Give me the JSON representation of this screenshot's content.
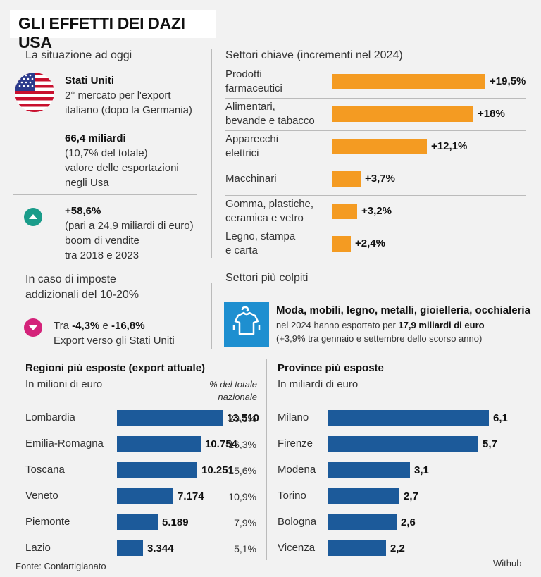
{
  "title": "GLI EFFETTI DEI DAZI USA",
  "situation": {
    "heading": "La situazione ad oggi",
    "country": "Stati Uniti",
    "country_desc": [
      "2° mercato per l'export",
      "italiano (dopo la Germania)"
    ],
    "export_value": "66,4 miliardi",
    "export_desc": [
      "(10,7% del totale)",
      "valore delle esportazioni",
      "negli Usa"
    ],
    "growth": "+58,6%",
    "growth_desc": [
      "(pari a 24,9 miliardi di euro)",
      "boom di vendite",
      "tra 2018 e 2023"
    ]
  },
  "tariffs": {
    "heading": [
      "In caso di imposte",
      "addizionali del 10-20%"
    ],
    "range_prefix": "Tra ",
    "range_low": "-4,3%",
    "range_mid": " e ",
    "range_high": "-16,8%",
    "range_desc": "Export verso gli Stati Uniti"
  },
  "key_sectors": {
    "heading": "Settori chiave (incrementi nel 2024)",
    "chart_data": {
      "type": "bar",
      "categories": [
        "Prodotti farmaceutici",
        "Alimentari, bevande e tabacco",
        "Apparecchi elettrici",
        "Macchinari",
        "Gomma, plastiche, ceramica e vetro",
        "Legno, stampa e carta"
      ],
      "values": [
        19.5,
        18,
        12.1,
        3.7,
        3.2,
        2.4
      ],
      "labels": [
        "+19,5%",
        "+18%",
        "+12,1%",
        "+3,7%",
        "+3,2%",
        "+2,4%"
      ],
      "label_lines": [
        [
          "Prodotti",
          "farmaceutici"
        ],
        [
          "Alimentari,",
          "bevande e tabacco"
        ],
        [
          "Apparecchi",
          "elettrici"
        ],
        [
          "Macchinari"
        ],
        [
          "Gomma, plastiche,",
          "ceramica e vetro"
        ],
        [
          "Legno, stampa",
          "e carta"
        ]
      ],
      "color": "#f49b22"
    }
  },
  "hit_sectors": {
    "heading": "Settori più colpiti",
    "headline": "Moda, mobili, legno, metalli, gioielleria, occhialeria",
    "line2_prefix": "nel 2024 hanno esportato per ",
    "line2_bold": "17,9 miliardi di euro",
    "line3": "(+3,9% tra gennaio e settembre dello scorso anno)",
    "icon": "clothing-icon"
  },
  "regions": {
    "heading": "Regioni più esposte (export attuale)",
    "subheading": "In milioni di euro",
    "pct_header": [
      "% del totale",
      "nazionale"
    ],
    "chart_data": {
      "type": "bar",
      "categories": [
        "Lombardia",
        "Emilia-Romagna",
        "Toscana",
        "Veneto",
        "Piemonte",
        "Lazio"
      ],
      "values": [
        13510,
        10754,
        10251,
        7174,
        5189,
        3344
      ],
      "labels": [
        "13.510",
        "10.754",
        "10.251",
        "7.174",
        "5.189",
        "3.344"
      ],
      "pct": [
        "20,5%",
        "16,3%",
        "15,6%",
        "10,9%",
        "7,9%",
        "5,1%"
      ],
      "color": "#1c5a9a"
    }
  },
  "provinces": {
    "heading": "Province più esposte",
    "subheading": "In miliardi di euro",
    "chart_data": {
      "type": "bar",
      "categories": [
        "Milano",
        "Firenze",
        "Modena",
        "Torino",
        "Bologna",
        "Vicenza"
      ],
      "values": [
        6.1,
        5.7,
        3.1,
        2.7,
        2.6,
        2.2
      ],
      "labels": [
        "6,1",
        "5,7",
        "3,1",
        "2,7",
        "2,6",
        "2,2"
      ],
      "color": "#1c5a9a"
    }
  },
  "source": "Fonte: Confartigianato",
  "credit": "Withub",
  "colors": {
    "orange": "#f49b22",
    "blue": "#1c5a9a",
    "teal": "#1a9c8a",
    "magenta": "#d4237a",
    "icon_bg": "#1e8fd0"
  }
}
